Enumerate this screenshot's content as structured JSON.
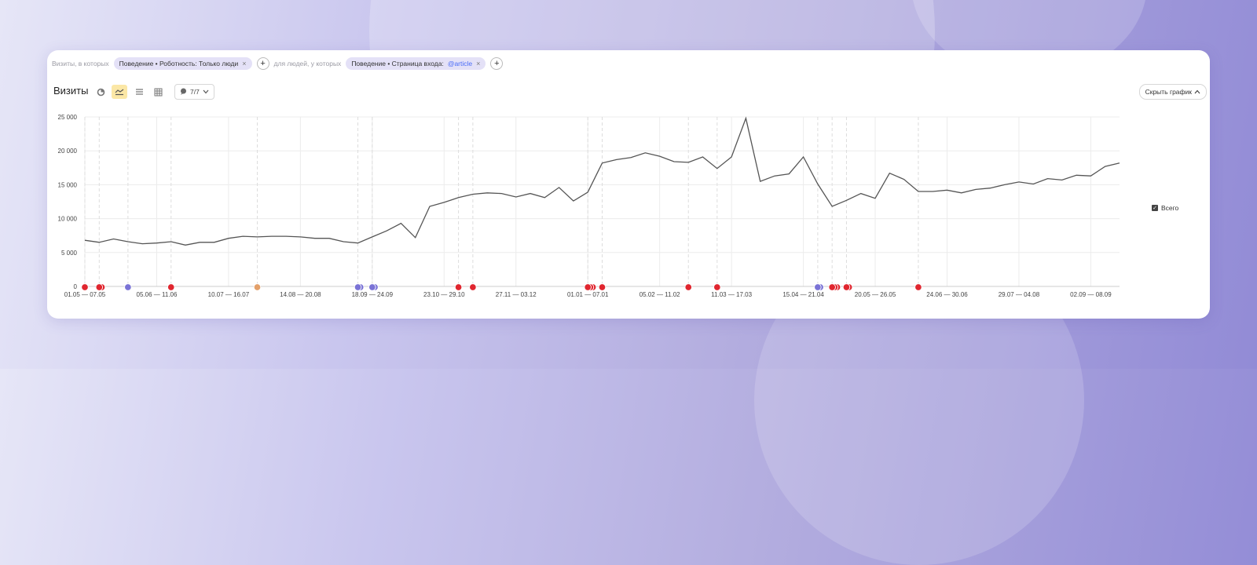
{
  "filters": {
    "prefix1": "Визиты, в которых",
    "chip1": "Поведение • Роботность: Только люди",
    "prefix2": "для людей, у которых",
    "chip2_text": "Поведение • Страница входа:",
    "chip2_value": "@article",
    "remove_glyph": "×",
    "add_glyph": "+"
  },
  "toolbar": {
    "title": "Визиты",
    "notes_label": "7/7",
    "hide_label": "Скрыть график"
  },
  "legend": {
    "label": "Всего"
  },
  "colors": {
    "line": "#555555",
    "grid": "#ececec",
    "red_marker": "#e0262f",
    "blue_marker": "#7a73d6",
    "orange_marker": "#e3a06a"
  },
  "chart_data": {
    "type": "line",
    "x_tick_labels": [
      "01.05 — 07.05",
      "05.06 — 11.06",
      "10.07 — 16.07",
      "14.08 — 20.08",
      "18.09 — 24.09",
      "23.10 — 29.10",
      "27.11 — 03.12",
      "01.01 — 07.01",
      "05.02 — 11.02",
      "11.03 — 17.03",
      "15.04 — 21.04",
      "20.05 — 26.05",
      "24.06 — 30.06",
      "29.07 — 04.08",
      "02.09 — 08.09"
    ],
    "y_ticks": [
      "25 000",
      "20 000",
      "15 000",
      "10 000",
      "5 000",
      "0"
    ],
    "ylim": [
      0,
      25000
    ],
    "series": [
      {
        "name": "Всего",
        "values": [
          6800,
          6500,
          7000,
          6600,
          6300,
          6400,
          6600,
          6100,
          6500,
          6500,
          7100,
          7400,
          7300,
          7400,
          7400,
          7300,
          7100,
          7100,
          6600,
          6400,
          7300,
          8200,
          9300,
          7200,
          11800,
          12400,
          13100,
          13600,
          13800,
          13700,
          13200,
          13700,
          13100,
          14600,
          12600,
          13900,
          18200,
          18700,
          19000,
          19700,
          19200,
          18400,
          18300,
          19100,
          17400,
          19100,
          24800,
          15500,
          16300,
          16600,
          19100,
          15100,
          11800,
          12700,
          13700,
          13000,
          16700,
          15800,
          14000,
          14000,
          14200,
          13800,
          14300,
          14500,
          15000,
          15400,
          15100,
          15900,
          15700,
          16400,
          16300,
          17700,
          18200
        ]
      }
    ],
    "marker_groups": [
      {
        "week": 0,
        "color": "red",
        "count": 1
      },
      {
        "week": 1,
        "color": "red",
        "count": 2
      },
      {
        "week": 3,
        "color": "blue",
        "count": 1
      },
      {
        "week": 6,
        "color": "red",
        "count": 1
      },
      {
        "week": 12,
        "color": "orange",
        "count": 1
      },
      {
        "week": 19,
        "color": "blue",
        "count": 2
      },
      {
        "week": 20,
        "color": "blue",
        "count": 2
      },
      {
        "week": 26,
        "color": "red",
        "count": 1
      },
      {
        "week": 27,
        "color": "red",
        "count": 1
      },
      {
        "week": 35,
        "color": "red",
        "count": 3
      },
      {
        "week": 36,
        "color": "red",
        "count": 1
      },
      {
        "week": 42,
        "color": "red",
        "count": 1
      },
      {
        "week": 44,
        "color": "red",
        "count": 1
      },
      {
        "week": 51,
        "color": "blue",
        "count": 2
      },
      {
        "week": 52,
        "color": "red",
        "count": 3
      },
      {
        "week": 53,
        "color": "red",
        "count": 2
      },
      {
        "week": 58,
        "color": "red",
        "count": 1
      }
    ],
    "grid": true
  }
}
